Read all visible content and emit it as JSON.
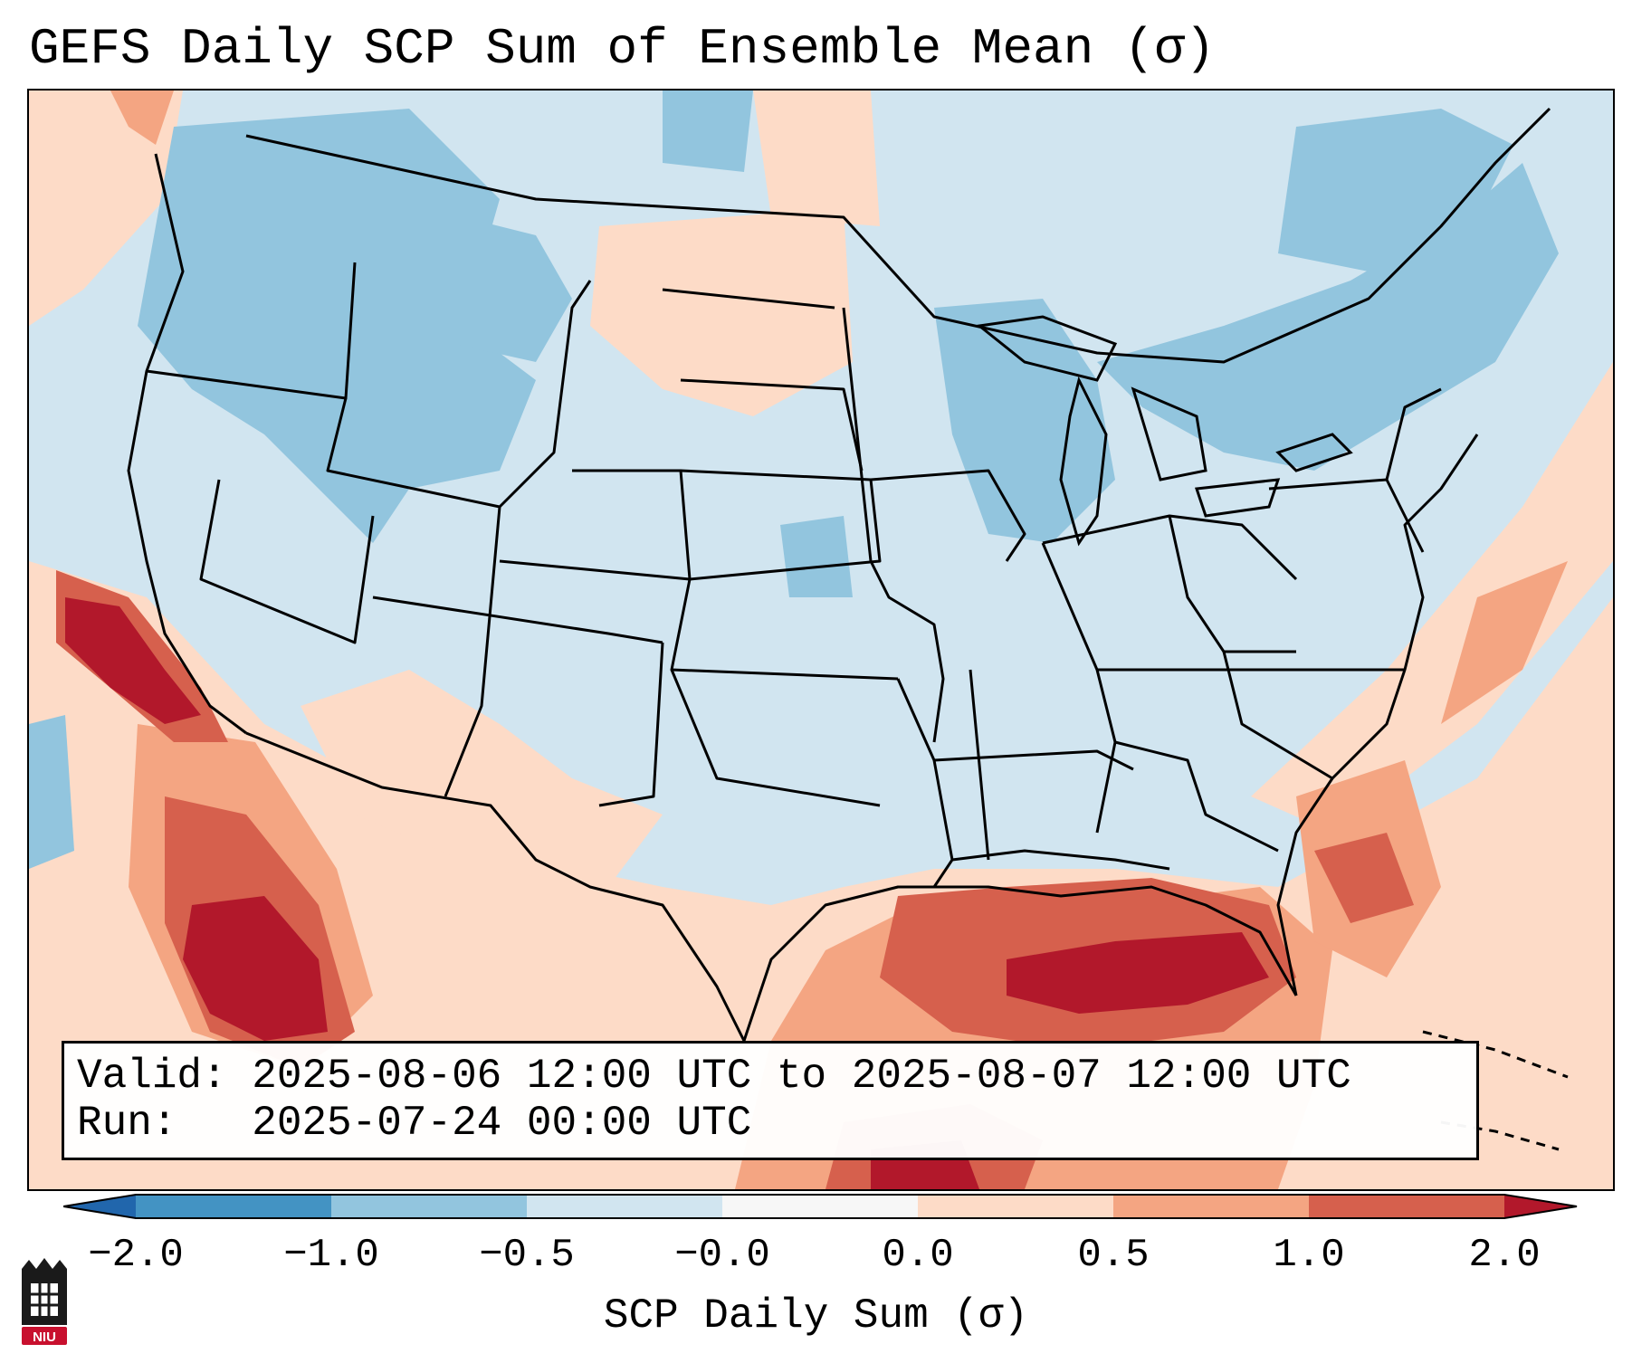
{
  "title": "GEFS Daily SCP Sum of Ensemble Mean (σ)",
  "info": {
    "valid_line": "Valid: 2025-08-06 12:00 UTC to 2025-08-07 12:00 UTC",
    "run_line": "Run:   2025-07-24 00:00 UTC"
  },
  "colorbar": {
    "label": "SCP Daily Sum (σ)",
    "ticks": [
      "−2.0",
      "−1.0",
      "−0.5",
      "−0.0",
      "0.0",
      "0.5",
      "1.0",
      "2.0"
    ],
    "bin_colors": [
      "#4393c3",
      "#92c5de",
      "#d1e5f0",
      "#f7f7f7",
      "#fddbc7",
      "#f4a582",
      "#d6604d"
    ],
    "extend_low_color": "#2166ac",
    "extend_high_color": "#b2182b"
  },
  "map": {
    "region": "Continental United States, southern Canada, northern Mexico, Gulf of Mexico",
    "palette": {
      "strong_negative": "#4393c3",
      "negative": "#92c5de",
      "weak_negative": "#d1e5f0",
      "weak_positive": "#fddbc7",
      "positive": "#f4a582",
      "strong_positive": "#d6604d",
      "extreme_positive": "#b2182b"
    }
  },
  "logo": {
    "text": "NIU",
    "color": "#c8102e"
  }
}
